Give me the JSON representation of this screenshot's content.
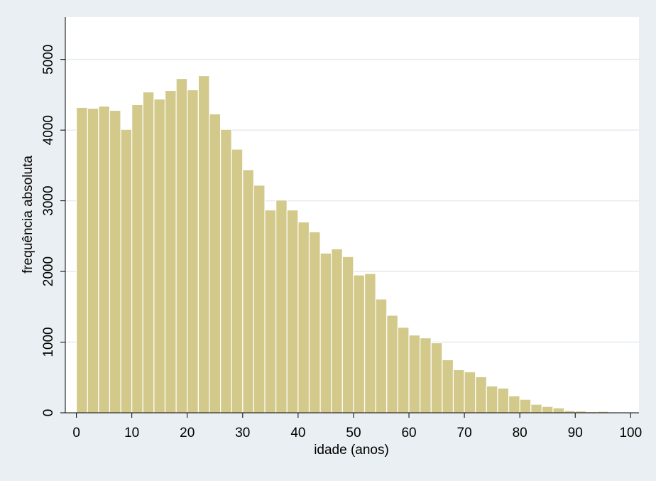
{
  "chart_data": {
    "type": "bar",
    "title": "",
    "xlabel": "idade (anos)",
    "ylabel": "frequência absoluta",
    "xlim": [
      -2,
      101.5
    ],
    "ylim": [
      0,
      5600
    ],
    "bin_width": 2,
    "x_ticks": [
      0,
      10,
      20,
      30,
      40,
      50,
      60,
      70,
      80,
      90,
      100
    ],
    "y_ticks": [
      0,
      1000,
      2000,
      3000,
      4000,
      5000
    ],
    "grid": true,
    "legend": "none",
    "colors": {
      "bar_fill": "#d2c98a",
      "bar_stroke": "#ffffff",
      "plot_bg": "#ffffff",
      "outer_bg": "#e9eff2",
      "grid": "#e6ebee",
      "axis": "#000000"
    },
    "bins": [
      {
        "x": 0,
        "value": 4320
      },
      {
        "x": 2,
        "value": 4310
      },
      {
        "x": 4,
        "value": 4340
      },
      {
        "x": 6,
        "value": 4280
      },
      {
        "x": 8,
        "value": 4010
      },
      {
        "x": 10,
        "value": 4360
      },
      {
        "x": 12,
        "value": 4540
      },
      {
        "x": 14,
        "value": 4440
      },
      {
        "x": 16,
        "value": 4560
      },
      {
        "x": 18,
        "value": 4730
      },
      {
        "x": 20,
        "value": 4570
      },
      {
        "x": 22,
        "value": 4770
      },
      {
        "x": 24,
        "value": 4230
      },
      {
        "x": 26,
        "value": 4010
      },
      {
        "x": 28,
        "value": 3730
      },
      {
        "x": 30,
        "value": 3440
      },
      {
        "x": 32,
        "value": 3220
      },
      {
        "x": 34,
        "value": 2870
      },
      {
        "x": 36,
        "value": 3010
      },
      {
        "x": 38,
        "value": 2870
      },
      {
        "x": 40,
        "value": 2700
      },
      {
        "x": 42,
        "value": 2560
      },
      {
        "x": 44,
        "value": 2260
      },
      {
        "x": 46,
        "value": 2320
      },
      {
        "x": 48,
        "value": 2210
      },
      {
        "x": 50,
        "value": 1950
      },
      {
        "x": 52,
        "value": 1970
      },
      {
        "x": 54,
        "value": 1610
      },
      {
        "x": 56,
        "value": 1380
      },
      {
        "x": 58,
        "value": 1210
      },
      {
        "x": 60,
        "value": 1100
      },
      {
        "x": 62,
        "value": 1060
      },
      {
        "x": 64,
        "value": 990
      },
      {
        "x": 66,
        "value": 750
      },
      {
        "x": 68,
        "value": 610
      },
      {
        "x": 70,
        "value": 580
      },
      {
        "x": 72,
        "value": 510
      },
      {
        "x": 74,
        "value": 380
      },
      {
        "x": 76,
        "value": 350
      },
      {
        "x": 78,
        "value": 240
      },
      {
        "x": 80,
        "value": 190
      },
      {
        "x": 82,
        "value": 120
      },
      {
        "x": 84,
        "value": 90
      },
      {
        "x": 86,
        "value": 70
      },
      {
        "x": 88,
        "value": 30
      },
      {
        "x": 90,
        "value": 25
      },
      {
        "x": 92,
        "value": 15
      },
      {
        "x": 94,
        "value": 20
      },
      {
        "x": 96,
        "value": 10
      },
      {
        "x": 98,
        "value": 10
      }
    ]
  }
}
